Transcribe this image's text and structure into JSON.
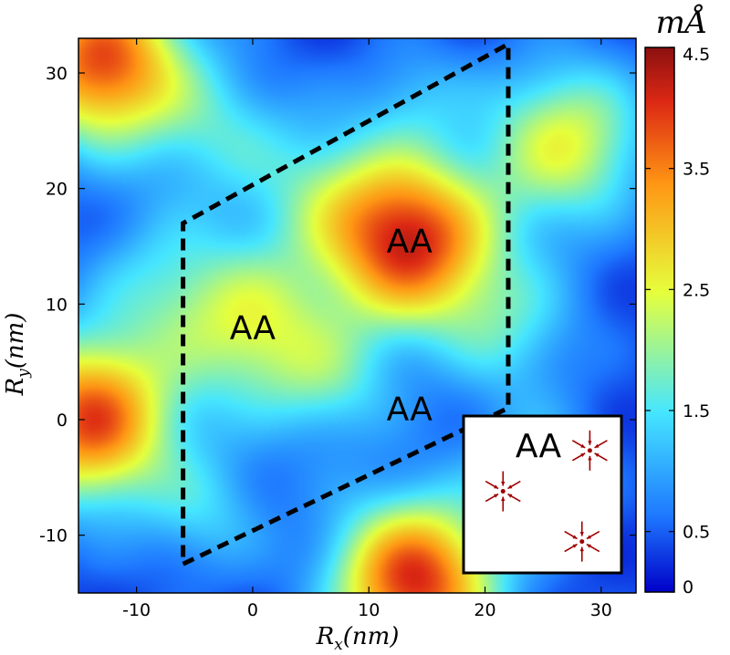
{
  "chart_data": {
    "type": "heatmap",
    "title": "",
    "xlabel": "R",
    "xlabel_sub": "x",
    "xlabel_unit": "(nm)",
    "ylabel": "R",
    "ylabel_sub": "y",
    "ylabel_unit": "(nm)",
    "xlim": [
      -15,
      33
    ],
    "ylim": [
      -15,
      33
    ],
    "x_ticks": [
      -10,
      0,
      10,
      20,
      30
    ],
    "y_ticks": [
      -10,
      0,
      10,
      20,
      30
    ],
    "x_tick_labels": [
      "-10",
      "0",
      "10",
      "20",
      "30"
    ],
    "y_tick_labels": [
      "-10",
      "0",
      "10",
      "20",
      "30"
    ],
    "colorbar": {
      "unit": "mÅ",
      "range": [
        0,
        4.5
      ],
      "ticks": [
        0,
        0.5,
        1.5,
        2.5,
        3.5,
        4.5
      ],
      "tick_labels": [
        "0",
        "0.5",
        "1.5",
        "2.5",
        "3.5",
        "4.5"
      ],
      "colors": [
        "#0000c8",
        "#1e78ff",
        "#46e6ff",
        "#e6ff3c",
        "#ff9614",
        "#dc2814",
        "#8b1010"
      ]
    },
    "maxima": [
      {
        "x": 13.5,
        "y": 15.5,
        "value": 4.2
      },
      {
        "x": -14,
        "y": 0,
        "value": 4.0
      },
      {
        "x": -13,
        "y": 31,
        "value": 4.0
      },
      {
        "x": 14,
        "y": -14,
        "value": 4.2
      },
      {
        "x": 27,
        "y": 24,
        "value": 2.6
      },
      {
        "x": 0,
        "y": 8,
        "value": 2.4
      }
    ],
    "unit_cell": {
      "vertices": [
        [
          -6,
          -12.5
        ],
        [
          22,
          1
        ],
        [
          22,
          32.5
        ],
        [
          -6,
          17
        ]
      ],
      "line_style": "dashed",
      "color": "#000000"
    },
    "annotations": [
      {
        "text": "AA",
        "x": 13.5,
        "y": 15.5
      },
      {
        "text": "AA",
        "x": 0,
        "y": 8
      },
      {
        "text": "AA",
        "x": 13.5,
        "y": 1
      }
    ],
    "inset": {
      "label": "AA",
      "arrow_color": "#a00000",
      "vortex_centers": [
        [
          0.25,
          0.48
        ],
        [
          0.8,
          0.22
        ],
        [
          0.75,
          0.8
        ]
      ]
    }
  }
}
